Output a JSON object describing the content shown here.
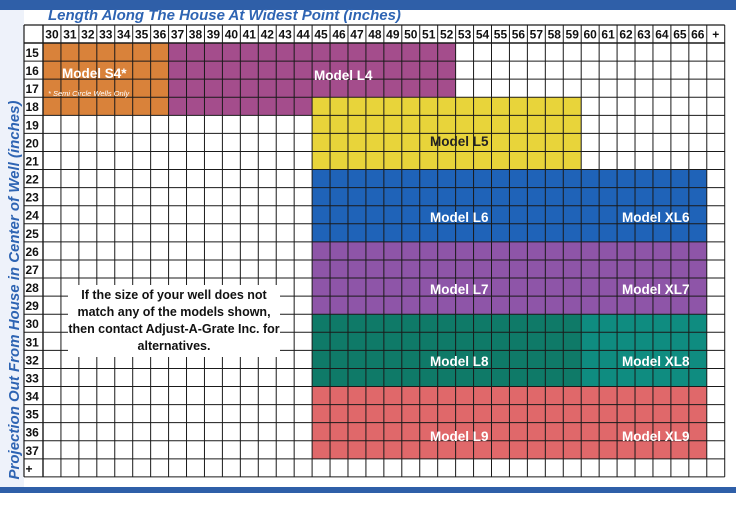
{
  "chart_data": {
    "type": "table",
    "title": "",
    "xlabel": "Length Along The House At Widest Point (inches)",
    "ylabel": "Projection Out From House in Center of Well (inches)",
    "x_ticks": [
      "30",
      "31",
      "32",
      "33",
      "34",
      "35",
      "36",
      "37",
      "38",
      "39",
      "40",
      "41",
      "42",
      "43",
      "44",
      "45",
      "46",
      "47",
      "48",
      "49",
      "50",
      "51",
      "52",
      "53",
      "54",
      "55",
      "56",
      "57",
      "58",
      "59",
      "60",
      "61",
      "62",
      "63",
      "64",
      "65",
      "66",
      "+"
    ],
    "y_ticks": [
      "15",
      "16",
      "17",
      "18",
      "19",
      "20",
      "21",
      "22",
      "23",
      "24",
      "25",
      "26",
      "27",
      "28",
      "29",
      "30",
      "31",
      "32",
      "33",
      "34",
      "35",
      "36",
      "37",
      "+"
    ],
    "models": [
      {
        "name": "Model L4",
        "x": [
          30,
          52
        ],
        "y": [
          15,
          18
        ],
        "color": "#a44d8c"
      },
      {
        "name": "Model S4*",
        "x": [
          30,
          36
        ],
        "y": [
          15,
          18
        ],
        "color": "#d9823a",
        "note": "* Semi Circle Wells Only"
      },
      {
        "name": "Model L5",
        "x": [
          45,
          59
        ],
        "y": [
          18,
          21
        ],
        "color": "#e8d43a"
      },
      {
        "name": "Model L6",
        "x": [
          45,
          66
        ],
        "y": [
          22,
          26
        ],
        "color": "#1f63b8"
      },
      {
        "name": "Model XL6",
        "x": [
          60,
          66
        ],
        "y": [
          22,
          26
        ],
        "color": "#1f63b8"
      },
      {
        "name": "Model L7",
        "x": [
          45,
          66
        ],
        "y": [
          26,
          30
        ],
        "color": "#8e55a8"
      },
      {
        "name": "Model XL7",
        "x": [
          60,
          66
        ],
        "y": [
          26,
          30
        ],
        "color": "#8e55a8"
      },
      {
        "name": "Model L8",
        "x": [
          45,
          66
        ],
        "y": [
          30,
          33
        ],
        "color": "#0f7a68"
      },
      {
        "name": "Model XL8",
        "x": [
          60,
          66
        ],
        "y": [
          30,
          33
        ],
        "color": "#0f8c80"
      },
      {
        "name": "Model L9",
        "x": [
          45,
          66
        ],
        "y": [
          34,
          37
        ],
        "color": "#e0686a"
      },
      {
        "name": "Model XL9",
        "x": [
          60,
          66
        ],
        "y": [
          34,
          37
        ],
        "color": "#e0686a"
      }
    ],
    "note": "If the size of your well does not match any of the models shown, then contact Adjust-A-Grate Inc. for alternatives."
  }
}
